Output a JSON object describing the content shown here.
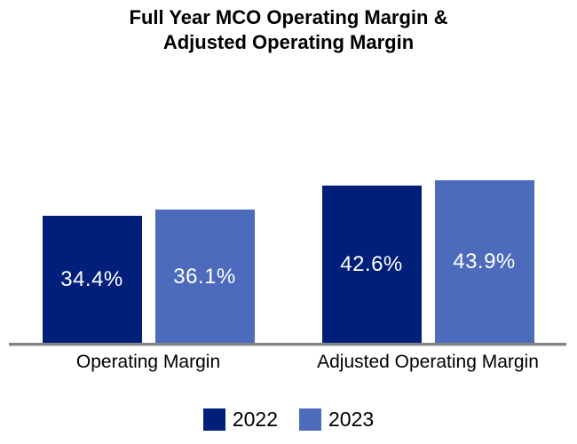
{
  "title": {
    "line1": "Full Year MCO Operating Margin &",
    "line2": "Adjusted Operating Margin"
  },
  "chart_data": {
    "type": "bar",
    "title": "Full Year MCO Operating Margin & Adjusted Operating Margin",
    "categories": [
      "Operating Margin",
      "Adjusted Operating Margin"
    ],
    "series": [
      {
        "name": "2022",
        "color": "#001F7B",
        "values": [
          34.4,
          42.6
        ],
        "labels": [
          "34.4%",
          "42.6%"
        ]
      },
      {
        "name": "2023",
        "color": "#4C6BBD",
        "values": [
          36.1,
          43.9
        ],
        "labels": [
          "36.1%",
          "43.9%"
        ]
      }
    ],
    "xlabel": "",
    "ylabel": "",
    "y_axis_visible": false,
    "grid": false,
    "data_labels": "inside-center",
    "legend_position": "bottom"
  },
  "colors": {
    "series_2022": "#001F7B",
    "series_2023": "#4C6BBD",
    "axis_line": "#848484",
    "bar_label_text": "#FFFFFF",
    "title_text": "#000000"
  }
}
